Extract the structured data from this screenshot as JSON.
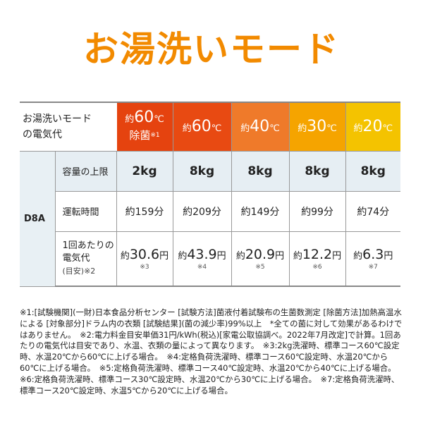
{
  "title": "お湯洗いモード",
  "table": {
    "header_label_1": "お湯洗いモード",
    "header_label_2": "の電気代",
    "columns": [
      {
        "prefix": "約",
        "temp": "60",
        "unit": "℃",
        "sub": "除菌",
        "note": "※1",
        "color": "#e5430f"
      },
      {
        "prefix": "約",
        "temp": "60",
        "unit": "℃",
        "color": "#e84a12"
      },
      {
        "prefix": "約",
        "temp": "40",
        "unit": "℃",
        "color": "#ef7a2a"
      },
      {
        "prefix": "約",
        "temp": "30",
        "unit": "℃",
        "color": "#f5a400"
      },
      {
        "prefix": "約",
        "temp": "20",
        "unit": "℃",
        "color": "#f4c300"
      }
    ],
    "model": "D8A",
    "rows": [
      {
        "label": "容量の上限",
        "values": [
          "2kg",
          "8kg",
          "8kg",
          "8kg",
          "8kg"
        ]
      },
      {
        "label": "運転時間",
        "values": [
          "約159分",
          "約209分",
          "約149分",
          "約99分",
          "約74分"
        ]
      },
      {
        "label_1": "1回あたりの",
        "label_2": "電気代",
        "label_3": "(目安)※2",
        "values": [
          {
            "prefix": "約",
            "num": "30.6",
            "unit": "円",
            "note": "※3"
          },
          {
            "prefix": "約",
            "num": "43.9",
            "unit": "円",
            "note": "※4"
          },
          {
            "prefix": "約",
            "num": "20.9",
            "unit": "円",
            "note": "※5"
          },
          {
            "prefix": "約",
            "num": "12.2",
            "unit": "円",
            "note": "※6"
          },
          {
            "prefix": "約",
            "num": "6.3",
            "unit": "円",
            "note": "※7"
          }
        ]
      }
    ]
  },
  "footnotes": "※1:[試験機関](一財)日本食品分析センター [試験方法]菌液付着試験布の生菌数測定 [除菌方法]加熱高温水による [対象部分]ドラム内の衣類 [試験結果](菌の減少率)99%以上　*全ての菌に対して効果があるわけではありません。　※2:電力料金目安単価31円/kWh(税込)[家電公取協調べ。2022年7月改定]で計算。1回あたりの電気代は目安であり、水温、衣類の量によって異なります。　※3:2kg洗濯時、標準コース60℃設定時、水温20℃から60℃に上げる場合。　※4:定格負荷洗濯時、標準コース60℃設定時、水温20℃から60℃に上げる場合。　※5:定格負荷洗濯時、標準コース40℃設定時、水温20℃から40℃に上げる場合。　※6:定格負荷洗濯時、標準コース30℃設定時、水温20℃から30℃に上げる場合。　※7:定格負荷洗濯時、標準コース20℃設定時、水温5℃から20℃に上げる場合。"
}
